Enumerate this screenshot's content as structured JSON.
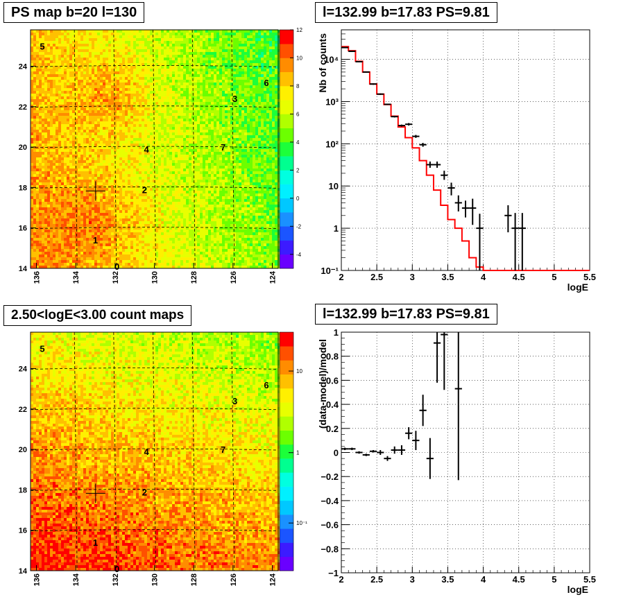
{
  "colors": {
    "frame": "#000000",
    "grid": "#000000",
    "model_line": "#ff0000",
    "data_points": "#000000"
  },
  "panels": {
    "ps_map": {
      "title": "PS map b=20 l=130"
    },
    "count_map": {
      "title": "2.50<logE<3.00 count maps"
    },
    "spectrum": {
      "title": "l=132.99 b=17.83 PS=9.81"
    },
    "residual": {
      "title": "l=132.99 b=17.83 PS=9.81"
    }
  },
  "chart_data": [
    {
      "type": "heatmap",
      "title": "PS map b=20 l=130",
      "xlabel": "",
      "ylabel": "",
      "x_ticks": [
        "136",
        "134",
        "132",
        "130",
        "128",
        "126",
        "124"
      ],
      "y_ticks": [
        "14",
        "16",
        "18",
        "20",
        "22",
        "24"
      ],
      "xlim": [
        136.3,
        123.7
      ],
      "ylim": [
        14,
        25.8
      ],
      "grid": true,
      "colorbar": {
        "scale": "linear",
        "min": -5,
        "max": 12,
        "ticks": [
          "12",
          "10",
          "8",
          "6",
          "4",
          "2",
          "0",
          "-2",
          "-4"
        ]
      },
      "colormap": [
        "#6a00ff",
        "#3c1bff",
        "#1b55ff",
        "#1a91ff",
        "#00c8ff",
        "#00f0ff",
        "#00ffe0",
        "#00ff90",
        "#1cff3a",
        "#6cff00",
        "#b0ff00",
        "#e8ff00",
        "#fff000",
        "#ffc000",
        "#ff8c00",
        "#ff5000",
        "#ff0000"
      ],
      "sources": [
        {
          "label": "0",
          "l": 131.9,
          "b": 14.1
        },
        {
          "label": "1",
          "l": 133.0,
          "b": 15.4
        },
        {
          "label": "2",
          "l": 130.5,
          "b": 17.9
        },
        {
          "label": "3",
          "l": 125.9,
          "b": 22.4
        },
        {
          "label": "4",
          "l": 130.4,
          "b": 19.9
        },
        {
          "label": "5",
          "l": 135.7,
          "b": 25.0
        },
        {
          "label": "6",
          "l": 124.3,
          "b": 23.2
        },
        {
          "label": "7",
          "l": 126.5,
          "b": 20.0
        }
      ],
      "marker": {
        "l": 132.99,
        "b": 17.83
      }
    },
    {
      "type": "heatmap",
      "title": "2.50<logE<3.00 count maps",
      "xlabel": "",
      "ylabel": "",
      "x_ticks": [
        "136",
        "134",
        "132",
        "130",
        "128",
        "126",
        "124"
      ],
      "y_ticks": [
        "14",
        "16",
        "18",
        "20",
        "22",
        "24"
      ],
      "xlim": [
        136.3,
        123.7
      ],
      "ylim": [
        14,
        25.8
      ],
      "grid": true,
      "colorbar": {
        "scale": "log",
        "ticks": [
          "10",
          "1",
          "10⁻¹"
        ]
      },
      "colormap": [
        "#6a00ff",
        "#3c1bff",
        "#1b55ff",
        "#1a91ff",
        "#00c8ff",
        "#00f0ff",
        "#00ffe0",
        "#00ff90",
        "#1cff3a",
        "#6cff00",
        "#b0ff00",
        "#e8ff00",
        "#fff000",
        "#ffc000",
        "#ff8c00",
        "#ff5000",
        "#ff0000"
      ],
      "sources": [
        {
          "label": "0",
          "l": 131.9,
          "b": 14.1
        },
        {
          "label": "1",
          "l": 133.0,
          "b": 15.4
        },
        {
          "label": "2",
          "l": 130.5,
          "b": 17.9
        },
        {
          "label": "3",
          "l": 125.9,
          "b": 22.4
        },
        {
          "label": "4",
          "l": 130.4,
          "b": 19.9
        },
        {
          "label": "5",
          "l": 135.7,
          "b": 25.0
        },
        {
          "label": "6",
          "l": 124.3,
          "b": 23.2
        },
        {
          "label": "7",
          "l": 126.5,
          "b": 20.0
        }
      ],
      "marker": {
        "l": 132.99,
        "b": 17.83
      }
    },
    {
      "type": "line",
      "title": "l=132.99 b=17.83 PS=9.81",
      "xlabel": "logE",
      "ylabel": "Nb of counts",
      "xlim": [
        2,
        5.5
      ],
      "ylim": [
        0.1,
        50000
      ],
      "y_scale": "log",
      "grid": true,
      "x_ticks": [
        "2",
        "2.5",
        "3",
        "3.5",
        "4",
        "4.5",
        "5",
        "5.5"
      ],
      "y_ticks": [
        {
          "label": "10⁻¹",
          "value": 0.1
        },
        {
          "label": "1",
          "value": 1
        },
        {
          "label": "10",
          "value": 10
        },
        {
          "label": "10²",
          "value": 100
        },
        {
          "label": "10³",
          "value": 1000
        },
        {
          "label": "10⁴",
          "value": 10000
        }
      ],
      "series": [
        {
          "type": "step",
          "edges": [
            2.0,
            2.1,
            2.2,
            2.3,
            2.4,
            2.5,
            2.6,
            2.7,
            2.8,
            2.9,
            3.0,
            3.1,
            3.2,
            3.3,
            3.4,
            3.5,
            3.6,
            3.7,
            3.8,
            3.9,
            4.0,
            4.1,
            4.2,
            4.3,
            4.4,
            4.5,
            4.6,
            4.7,
            4.8,
            4.9,
            5.0,
            5.1,
            5.2,
            5.3,
            5.4,
            5.5
          ],
          "values": [
            20000,
            16000,
            9000,
            5000,
            2600,
            1500,
            850,
            450,
            250,
            140,
            80,
            40,
            18,
            8,
            3.5,
            1.6,
            1.0,
            0.5,
            0.2,
            0.12,
            0.1,
            0.1,
            0.1,
            0.1,
            0.1,
            0.1,
            0.1,
            0.1,
            0.1,
            0.1,
            0.1,
            0.1,
            0.1,
            0.1,
            0.1
          ]
        },
        {
          "type": "errorbar",
          "points": [
            {
              "x": 2.05,
              "y": 19000,
              "lo": 18700,
              "hi": 19300
            },
            {
              "x": 2.15,
              "y": 15500,
              "lo": 15200,
              "hi": 15800
            },
            {
              "x": 2.25,
              "y": 8800,
              "lo": 8600,
              "hi": 9000
            },
            {
              "x": 2.35,
              "y": 5000,
              "lo": 4850,
              "hi": 5150
            },
            {
              "x": 2.45,
              "y": 2600,
              "lo": 2500,
              "hi": 2700
            },
            {
              "x": 2.55,
              "y": 1500,
              "lo": 1440,
              "hi": 1560
            },
            {
              "x": 2.65,
              "y": 860,
              "lo": 830,
              "hi": 890
            },
            {
              "x": 2.75,
              "y": 440,
              "lo": 420,
              "hi": 460
            },
            {
              "x": 2.85,
              "y": 270,
              "lo": 255,
              "hi": 285
            },
            {
              "x": 2.95,
              "y": 290,
              "lo": 270,
              "hi": 310
            },
            {
              "x": 3.05,
              "y": 150,
              "lo": 138,
              "hi": 162
            },
            {
              "x": 3.15,
              "y": 95,
              "lo": 85,
              "hi": 105
            },
            {
              "x": 3.25,
              "y": 32,
              "lo": 27,
              "hi": 38
            },
            {
              "x": 3.35,
              "y": 32,
              "lo": 27,
              "hi": 38
            },
            {
              "x": 3.45,
              "y": 18,
              "lo": 14,
              "hi": 23
            },
            {
              "x": 3.55,
              "y": 9,
              "lo": 6,
              "hi": 12
            },
            {
              "x": 3.65,
              "y": 4,
              "lo": 2.5,
              "hi": 6
            },
            {
              "x": 3.75,
              "y": 3,
              "lo": 1.8,
              "hi": 4.5
            },
            {
              "x": 3.85,
              "y": 3,
              "lo": 1.2,
              "hi": 5
            },
            {
              "x": 3.95,
              "y": 1,
              "lo": 0.1,
              "hi": 2.2
            },
            {
              "x": 4.35,
              "y": 2,
              "lo": 0.8,
              "hi": 3.5
            },
            {
              "x": 4.45,
              "y": 1,
              "lo": 0.1,
              "hi": 2.3
            },
            {
              "x": 4.55,
              "y": 1,
              "lo": 0.1,
              "hi": 2.3
            }
          ]
        }
      ]
    },
    {
      "type": "scatter",
      "title": "l=132.99 b=17.83 PS=9.81",
      "xlabel": "logE",
      "ylabel": "(data-model)/model",
      "xlim": [
        2,
        5.5
      ],
      "ylim": [
        -1,
        1
      ],
      "grid": true,
      "x_ticks": [
        "2",
        "2.5",
        "3",
        "3.5",
        "4",
        "4.5",
        "5",
        "5.5"
      ],
      "y_ticks": [
        "-1",
        "-0.8",
        "-0.6",
        "-0.4",
        "-0.2",
        "0",
        "0.2",
        "0.4",
        "0.6",
        "0.8",
        "1"
      ],
      "series": [
        {
          "type": "errorbar",
          "points": [
            {
              "x": 2.05,
              "y": 0.03,
              "lo": 0.02,
              "hi": 0.04
            },
            {
              "x": 2.15,
              "y": 0.03,
              "lo": 0.02,
              "hi": 0.04
            },
            {
              "x": 2.25,
              "y": 0.0,
              "lo": -0.01,
              "hi": 0.01
            },
            {
              "x": 2.35,
              "y": -0.02,
              "lo": -0.03,
              "hi": -0.01
            },
            {
              "x": 2.45,
              "y": 0.01,
              "lo": 0.0,
              "hi": 0.02
            },
            {
              "x": 2.55,
              "y": 0.0,
              "lo": -0.02,
              "hi": 0.02
            },
            {
              "x": 2.65,
              "y": -0.05,
              "lo": -0.07,
              "hi": -0.03
            },
            {
              "x": 2.75,
              "y": 0.02,
              "lo": -0.01,
              "hi": 0.05
            },
            {
              "x": 2.85,
              "y": 0.02,
              "lo": -0.02,
              "hi": 0.06
            },
            {
              "x": 2.95,
              "y": 0.16,
              "lo": 0.11,
              "hi": 0.21
            },
            {
              "x": 3.05,
              "y": 0.1,
              "lo": 0.02,
              "hi": 0.18
            },
            {
              "x": 3.15,
              "y": 0.35,
              "lo": 0.22,
              "hi": 0.48
            },
            {
              "x": 3.25,
              "y": -0.05,
              "lo": -0.22,
              "hi": 0.12
            },
            {
              "x": 3.35,
              "y": 0.91,
              "lo": 0.58,
              "hi": 1.0
            },
            {
              "x": 3.45,
              "y": 0.98,
              "lo": 0.52,
              "hi": 1.0
            },
            {
              "x": 3.65,
              "y": 0.53,
              "lo": -0.23,
              "hi": 1.0
            }
          ]
        }
      ]
    }
  ]
}
